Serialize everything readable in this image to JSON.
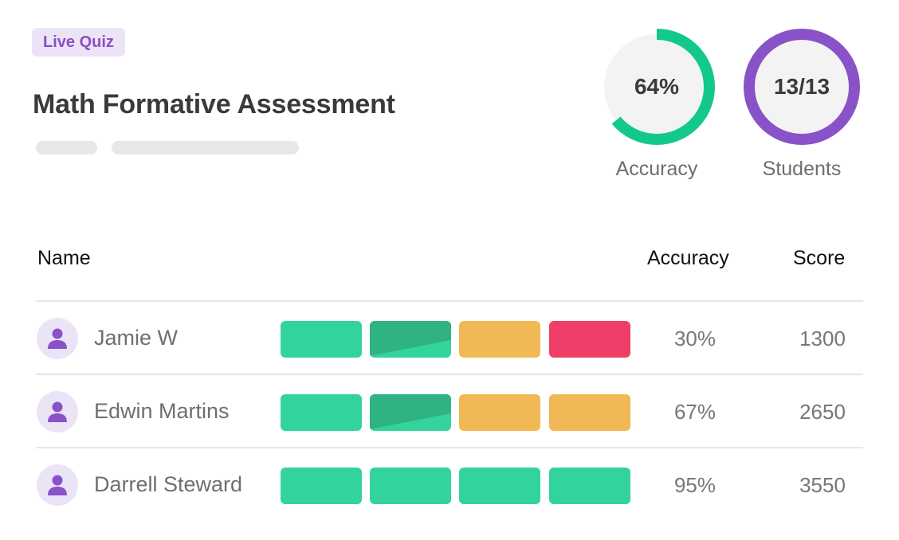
{
  "header": {
    "badge": "Live Quiz",
    "title": "Math Formative Assessment"
  },
  "summary": {
    "accuracy": {
      "value": "64%",
      "label": "Accuracy",
      "fraction": 0.64,
      "color": "#12c98a"
    },
    "students": {
      "value": "13/13",
      "label": "Students",
      "fraction": 1.0,
      "color": "#8a52c8"
    }
  },
  "table": {
    "columns": {
      "name": "Name",
      "accuracy": "Accuracy",
      "score": "Score"
    },
    "rows": [
      {
        "name": "Jamie W",
        "accuracy": "30%",
        "score": "1300",
        "answers": [
          "correct",
          "partial",
          "incorrect-yellow",
          "incorrect-red"
        ]
      },
      {
        "name": "Edwin Martins",
        "accuracy": "67%",
        "score": "2650",
        "answers": [
          "correct",
          "partial",
          "incorrect-yellow",
          "incorrect-yellow"
        ]
      },
      {
        "name": "Darrell Steward",
        "accuracy": "95%",
        "score": "3550",
        "answers": [
          "correct",
          "correct",
          "correct",
          "correct"
        ]
      }
    ]
  },
  "colors": {
    "correct": "#33d39c",
    "partial_dark": "#2fb383",
    "yellow": "#f1b955",
    "red": "#ef3f69",
    "avatar_bg": "#ebe4f7",
    "avatar_icon": "#8a52c8"
  },
  "icons": {
    "avatar": "person-icon"
  }
}
